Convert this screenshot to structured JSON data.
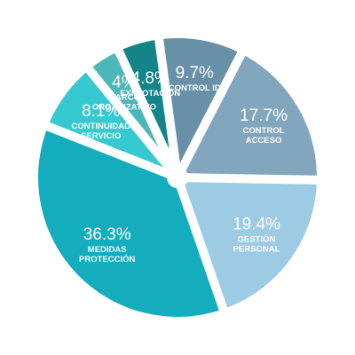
{
  "chart_data": {
    "type": "pie",
    "title": "",
    "slices": [
      {
        "percent_label": "19.4%",
        "value": 19.4,
        "label_lines": [
          "GESTIÓN",
          "PERSONAL"
        ],
        "color": "#9dcbe3"
      },
      {
        "percent_label": "36.3%",
        "value": 36.3,
        "label_lines": [
          "MEDIDAS",
          "PROTECCIÓN"
        ],
        "color": "#13adbd"
      },
      {
        "percent_label": "8.1%",
        "value": 8.1,
        "label_lines": [
          "CONTINUIDAD",
          "SERVICIO"
        ],
        "color": "#36c9d2"
      },
      {
        "percent_label": "4%",
        "value": 4,
        "label_lines": [
          "MARCO",
          "ORGANIZATIVO"
        ],
        "color": "#4cb6b8"
      },
      {
        "percent_label": "4.8%",
        "value": 4.8,
        "label_lines": [
          "EXPLOTACIÓN"
        ],
        "color": "#138488"
      },
      {
        "percent_label": "9.7%",
        "value": 9.7,
        "label_lines": [
          "CONTROL ID"
        ],
        "color": "#6891a8"
      },
      {
        "percent_label": "17.7%",
        "value": 17.7,
        "label_lines": [
          "CONTROL",
          "ACCESO"
        ],
        "color": "#82a6bd"
      }
    ]
  }
}
